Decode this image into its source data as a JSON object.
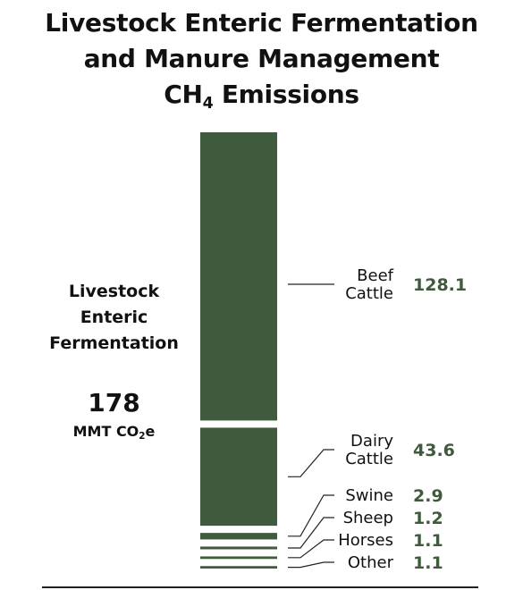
{
  "title": {
    "line1": "Livestock Enteric Fermentation",
    "line2": "and Manure Management",
    "line3_main": "CH",
    "line3_sub": "4",
    "line3_rest": " Emissions"
  },
  "group_label": {
    "lines": [
      "Livestock",
      "Enteric",
      "Fermentation"
    ]
  },
  "total": {
    "value": "178",
    "unit_main": "MMT CO",
    "unit_sub": "2",
    "unit_rest": "e"
  },
  "colors": {
    "bar": "#3f5a3c",
    "value_text": "#3f5a3c",
    "leader": "#222222"
  },
  "chart_data": {
    "type": "bar",
    "stacked": true,
    "orientation": "vertical",
    "categories": [
      "Beef Cattle",
      "Dairy Cattle",
      "Swine",
      "Sheep",
      "Horses",
      "Other"
    ],
    "series": [
      {
        "values": [
          128.1,
          43.6,
          2.9,
          1.2,
          1.1,
          1.1
        ]
      }
    ],
    "labels": [
      {
        "lines": [
          "Beef",
          "Cattle"
        ],
        "value": "128.1"
      },
      {
        "lines": [
          "Dairy",
          "Cattle"
        ],
        "value": "43.6"
      },
      {
        "lines": [
          "Swine"
        ],
        "value": "2.9"
      },
      {
        "lines": [
          "Sheep"
        ],
        "value": "1.2"
      },
      {
        "lines": [
          "Horses"
        ],
        "value": "1.1"
      },
      {
        "lines": [
          "Other"
        ],
        "value": "1.1"
      }
    ],
    "title": "Livestock Enteric Fermentation and Manure Management CH4 Emissions",
    "xlabel": "",
    "ylabel": ""
  }
}
